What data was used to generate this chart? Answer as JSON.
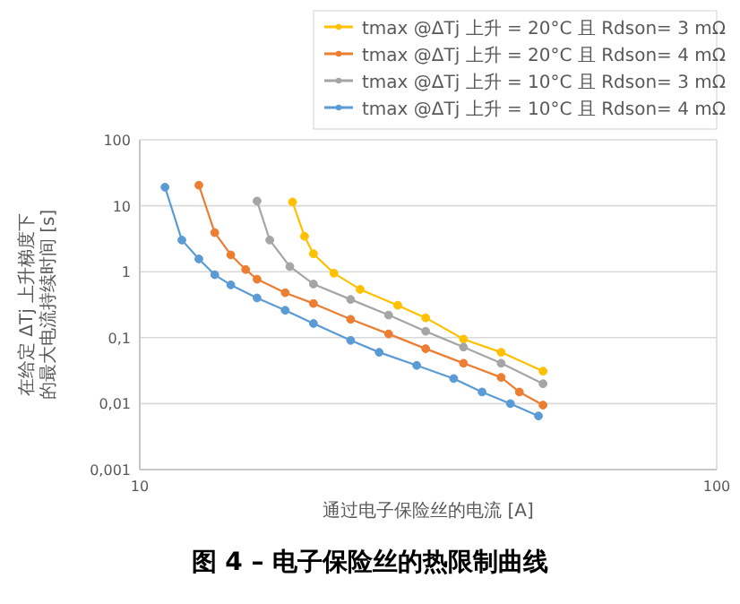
{
  "chart_data": {
    "type": "line",
    "title": "图 4 – 电子保险丝的热限制曲线",
    "xlabel": "通过电子保险丝的电流 [A]",
    "ylabel": "在给定 ΔTj 上升梯度下的最大电流持续时间 [s]",
    "log": "xy",
    "xlim": [
      10,
      100
    ],
    "xticks": [
      10,
      100
    ],
    "ylim": [
      0.001,
      100
    ],
    "yticks": [
      {
        "value": 0.001,
        "label": "0,001"
      },
      {
        "value": 0.01,
        "label": "0,01"
      },
      {
        "value": 0.1,
        "label": "0,1"
      },
      1,
      10,
      100
    ],
    "grid": true,
    "legend": "top right",
    "marker": "circle",
    "line_style": "solid",
    "series": [
      {
        "name": "tmax @ΔTj 上升 = 20°C 且 Rdson= 3 mΩ",
        "color": "#ffc000",
        "x": [
          18.4,
          19.3,
          20.0,
          21.7,
          24.1,
          28.0,
          31.3,
          36.4,
          42.3,
          50.0
        ],
        "values": [
          11.4,
          3.44,
          1.87,
          0.95,
          0.54,
          0.31,
          0.2,
          0.095,
          0.06,
          0.031
        ]
      },
      {
        "name": "tmax @ΔTj 上升 = 20°C 且 Rdson= 4 mΩ",
        "color": "#ed7d31",
        "x": [
          12.66,
          13.49,
          14.38,
          15.26,
          15.97,
          17.87,
          20.0,
          23.2,
          27.0,
          31.3,
          36.4,
          42.3,
          45.5,
          50.0
        ],
        "values": [
          20.5,
          3.91,
          1.8,
          1.08,
          0.77,
          0.48,
          0.33,
          0.19,
          0.114,
          0.068,
          0.041,
          0.025,
          0.015,
          0.0095
        ]
      },
      {
        "name": "tmax @ΔTj 上升 = 10°C 且 Rdson= 3 mΩ",
        "color": "#a5a5a5",
        "x": [
          15.97,
          16.8,
          18.2,
          20.0,
          23.2,
          27.0,
          31.3,
          36.4,
          42.3,
          50.0
        ],
        "values": [
          11.8,
          3.02,
          1.2,
          0.65,
          0.38,
          0.22,
          0.125,
          0.072,
          0.041,
          0.02
        ]
      },
      {
        "name": "tmax @ΔTj 上升 = 10°C 且 Rdson= 4 mΩ",
        "color": "#5b9bd5",
        "x": [
          11.06,
          11.83,
          12.66,
          13.49,
          14.38,
          15.97,
          17.87,
          20.0,
          23.2,
          26.0,
          30.2,
          35.0,
          39.2,
          43.9,
          49.1
        ],
        "values": [
          19.1,
          3.02,
          1.56,
          0.9,
          0.63,
          0.4,
          0.26,
          0.164,
          0.091,
          0.06,
          0.038,
          0.024,
          0.015,
          0.01,
          0.0065
        ]
      }
    ]
  }
}
